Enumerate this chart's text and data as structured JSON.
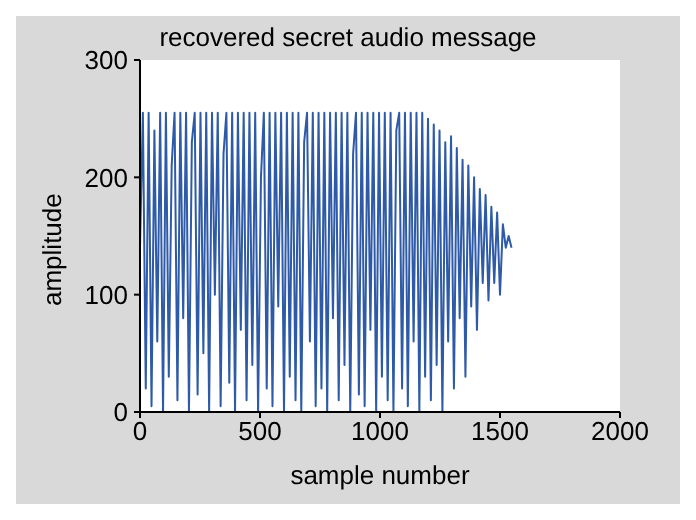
{
  "chart_data": {
    "type": "line",
    "title": "recovered secret audio message",
    "xlabel": "sample number",
    "ylabel": "amplitude",
    "xlim": [
      0,
      2000
    ],
    "xticks": [
      0,
      500,
      1000,
      1500,
      2000
    ],
    "ylim": [
      0,
      300
    ],
    "yticks": [
      0,
      100,
      200,
      300
    ],
    "grid": false,
    "legend": false,
    "marker": "none",
    "line_style": "solid",
    "x": [
      0,
      12,
      24,
      36,
      48,
      60,
      72,
      84,
      96,
      108,
      120,
      132,
      144,
      156,
      168,
      180,
      192,
      204,
      216,
      228,
      240,
      252,
      264,
      276,
      288,
      300,
      312,
      324,
      336,
      348,
      360,
      372,
      384,
      396,
      408,
      420,
      432,
      444,
      456,
      468,
      480,
      492,
      504,
      516,
      528,
      540,
      552,
      564,
      576,
      588,
      600,
      612,
      624,
      636,
      648,
      660,
      672,
      684,
      696,
      708,
      720,
      732,
      744,
      756,
      768,
      780,
      792,
      804,
      816,
      828,
      840,
      852,
      864,
      876,
      888,
      900,
      912,
      924,
      936,
      948,
      960,
      972,
      984,
      996,
      1008,
      1020,
      1032,
      1044,
      1056,
      1068,
      1080,
      1092,
      1104,
      1116,
      1128,
      1140,
      1152,
      1164,
      1176,
      1188,
      1200,
      1212,
      1224,
      1236,
      1248,
      1260,
      1272,
      1284,
      1296,
      1308,
      1320,
      1332,
      1344,
      1356,
      1368,
      1380,
      1392,
      1404,
      1416,
      1428,
      1440,
      1452,
      1464,
      1476,
      1488,
      1500,
      1512,
      1524,
      1536,
      1548
    ],
    "series": [
      {
        "color": "#2e5aa8",
        "values": [
          140,
          255,
          20,
          255,
          5,
          240,
          60,
          255,
          0,
          255,
          30,
          210,
          255,
          10,
          255,
          80,
          255,
          0,
          230,
          255,
          15,
          255,
          50,
          255,
          0,
          255,
          100,
          255,
          5,
          220,
          255,
          25,
          255,
          0,
          255,
          70,
          255,
          10,
          255,
          40,
          255,
          0,
          200,
          255,
          20,
          255,
          5,
          255,
          90,
          255,
          0,
          255,
          30,
          255,
          10,
          255,
          0,
          230,
          255,
          60,
          255,
          5,
          255,
          20,
          255,
          0,
          255,
          80,
          255,
          10,
          255,
          40,
          255,
          0,
          220,
          255,
          15,
          255,
          5,
          255,
          70,
          255,
          0,
          255,
          30,
          255,
          10,
          255,
          0,
          240,
          255,
          20,
          255,
          5,
          255,
          60,
          255,
          0,
          255,
          30,
          250,
          10,
          245,
          40,
          240,
          0,
          230,
          60,
          235,
          20,
          225,
          80,
          215,
          30,
          210,
          90,
          200,
          70,
          190,
          110,
          185,
          95,
          175,
          110,
          170,
          100,
          160,
          140,
          150,
          140
        ]
      }
    ]
  }
}
